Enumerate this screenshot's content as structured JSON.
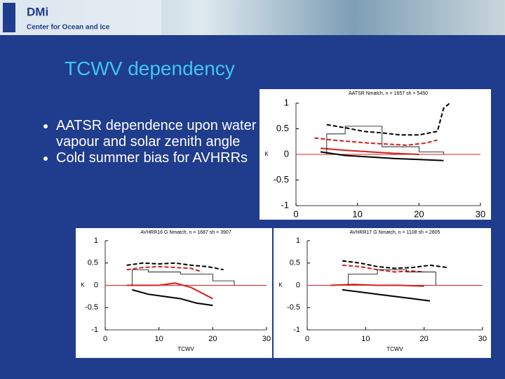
{
  "header": {
    "logo": "DMi",
    "org": "Center for Ocean and Ice"
  },
  "title": "TCWV dependency",
  "bullets": [
    "AATSR dependence upon water vapour and solar zenith angle",
    "Cold summer bias for AVHRRs"
  ],
  "chart_data": [
    {
      "type": "line",
      "title": "AATSR Nmatch, n = 1657 sh = 5450",
      "ylabel": "K",
      "xlim": [
        0,
        30
      ],
      "ylim": [
        -1,
        1
      ],
      "xticks": [
        0,
        10,
        20,
        30
      ],
      "yticks": [
        -1,
        -0.5,
        0,
        0.5,
        1
      ],
      "series": [
        {
          "color": "#000000",
          "dash": true,
          "x": [
            5,
            8,
            11,
            14,
            17,
            20,
            23,
            24,
            25
          ],
          "values": [
            0.58,
            0.52,
            0.45,
            0.42,
            0.38,
            0.38,
            0.45,
            0.9,
            1.0
          ]
        },
        {
          "color": "#d42020",
          "dash": true,
          "x": [
            3,
            6,
            9,
            12,
            15,
            18,
            21,
            23
          ],
          "values": [
            0.32,
            0.28,
            0.25,
            0.22,
            0.2,
            0.18,
            0.22,
            0.28
          ]
        },
        {
          "color": "#000000",
          "dash": false,
          "x": [
            4,
            8,
            12,
            16,
            20,
            24
          ],
          "values": [
            0.05,
            -0.02,
            -0.05,
            -0.08,
            -0.1,
            -0.12
          ]
        },
        {
          "color": "#d42020",
          "dash": false,
          "x": [
            4,
            8,
            12,
            16,
            20
          ],
          "values": [
            0.12,
            0.08,
            0.05,
            0.02,
            0.0
          ]
        },
        {
          "color": "#000000",
          "dash": false,
          "thin": true,
          "x": [
            5,
            5,
            8,
            8,
            14,
            14,
            20,
            20,
            24,
            24
          ],
          "values": [
            0,
            0.4,
            0.4,
            0.55,
            0.55,
            0.15,
            0.15,
            0.05,
            0.05,
            0
          ]
        }
      ]
    },
    {
      "type": "line",
      "title": "AVHRR16 G Nmatch, n = 1687 sh = 3907",
      "xlabel": "TCWV",
      "ylabel": "K",
      "xlim": [
        0,
        30
      ],
      "ylim": [
        -1,
        1
      ],
      "xticks": [
        0,
        10,
        20,
        30
      ],
      "yticks": [
        -1,
        -0.5,
        0,
        0.5,
        1
      ],
      "series": [
        {
          "color": "#000000",
          "dash": true,
          "x": [
            4,
            7,
            10,
            13,
            16,
            19,
            22
          ],
          "values": [
            0.45,
            0.5,
            0.48,
            0.5,
            0.45,
            0.42,
            0.35
          ]
        },
        {
          "color": "#d42020",
          "dash": true,
          "x": [
            4,
            7,
            10,
            13,
            16,
            18
          ],
          "values": [
            0.35,
            0.4,
            0.42,
            0.4,
            0.38,
            0.3
          ]
        },
        {
          "color": "#000000",
          "dash": false,
          "x": [
            5,
            8,
            11,
            14,
            17,
            20
          ],
          "values": [
            -0.1,
            -0.2,
            -0.25,
            -0.3,
            -0.4,
            -0.45
          ]
        },
        {
          "color": "#d42020",
          "dash": false,
          "x": [
            4,
            7,
            10,
            13,
            16,
            20
          ],
          "values": [
            0,
            0,
            0,
            0.05,
            -0.05,
            -0.3
          ]
        },
        {
          "color": "#000000",
          "dash": false,
          "thin": true,
          "x": [
            5,
            5,
            8,
            8,
            14,
            14,
            20,
            20,
            24,
            24
          ],
          "values": [
            0,
            0.35,
            0.35,
            0.3,
            0.3,
            0.25,
            0.25,
            0.1,
            0.1,
            0
          ]
        }
      ]
    },
    {
      "type": "line",
      "title": "AVHRR17 G Nmatch, n = 1108 sh = 2805",
      "xlabel": "TCWV",
      "ylabel": "K",
      "xlim": [
        0,
        30
      ],
      "ylim": [
        -1,
        1
      ],
      "xticks": [
        0,
        10,
        20,
        30
      ],
      "yticks": [
        -1,
        -0.5,
        0,
        0.5,
        1
      ],
      "series": [
        {
          "color": "#000000",
          "dash": true,
          "x": [
            6,
            9,
            12,
            15,
            18,
            21,
            24
          ],
          "values": [
            0.55,
            0.5,
            0.42,
            0.38,
            0.4,
            0.45,
            0.4
          ]
        },
        {
          "color": "#d42020",
          "dash": true,
          "x": [
            6,
            9,
            12,
            15,
            18,
            20
          ],
          "values": [
            0.45,
            0.42,
            0.35,
            0.3,
            0.32,
            0.3
          ]
        },
        {
          "color": "#000000",
          "dash": false,
          "x": [
            6,
            9,
            12,
            15,
            18,
            21
          ],
          "values": [
            -0.1,
            -0.15,
            -0.2,
            -0.25,
            -0.3,
            -0.35
          ]
        },
        {
          "color": "#d42020",
          "dash": false,
          "x": [
            4,
            8,
            12,
            16,
            20
          ],
          "values": [
            0,
            0.02,
            0,
            0,
            -0.02
          ]
        },
        {
          "color": "#000000",
          "dash": false,
          "thin": true,
          "x": [
            7,
            7,
            12,
            12,
            17,
            17,
            22,
            22
          ],
          "values": [
            0,
            0.25,
            0.25,
            0.35,
            0.35,
            0.3,
            0.3,
            0
          ]
        }
      ]
    }
  ]
}
